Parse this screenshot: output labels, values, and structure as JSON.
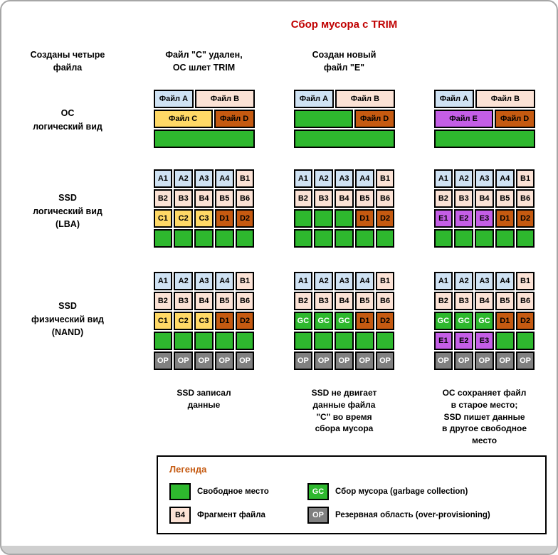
{
  "title": "Сбор мусора с TRIM",
  "colors": {
    "title": "#c00000",
    "free": "#2eb82e",
    "file_a": "#cfe2f3",
    "file_b": "#fbe2d5",
    "file_c": "#ffd966",
    "file_d": "#c55a11",
    "file_e": "#c45ee6",
    "op": "#808080",
    "legend_title": "#c55a11"
  },
  "row_labels": [
    "ОС\nлогический вид",
    "SSD\nлогический вид\n(LBA)",
    "SSD\nфизический вид\n(NAND)"
  ],
  "columns": [
    {
      "header": "Созданы четыре\nфайла",
      "caption": "SSD записал\nданные",
      "os_rows": [
        [
          {
            "label": "Файл A",
            "type": "A",
            "flex": 2
          },
          {
            "label": "Файл B",
            "type": "B",
            "flex": 3
          }
        ],
        [
          {
            "label": "Файл C",
            "type": "C",
            "flex": 3
          },
          {
            "label": "Файл D",
            "type": "D",
            "flex": 2
          }
        ],
        [
          {
            "label": "",
            "type": "free",
            "flex": 1
          }
        ]
      ],
      "lba_grid": [
        [
          {
            "label": "A1",
            "type": "A"
          },
          {
            "label": "A2",
            "type": "A"
          },
          {
            "label": "A3",
            "type": "A"
          },
          {
            "label": "A4",
            "type": "A"
          },
          {
            "label": "B1",
            "type": "B"
          }
        ],
        [
          {
            "label": "B2",
            "type": "B"
          },
          {
            "label": "B3",
            "type": "B"
          },
          {
            "label": "B4",
            "type": "B"
          },
          {
            "label": "B5",
            "type": "B"
          },
          {
            "label": "B6",
            "type": "B"
          }
        ],
        [
          {
            "label": "C1",
            "type": "C"
          },
          {
            "label": "C2",
            "type": "C"
          },
          {
            "label": "C3",
            "type": "C"
          },
          {
            "label": "D1",
            "type": "D"
          },
          {
            "label": "D2",
            "type": "D"
          }
        ],
        [
          {
            "label": "",
            "type": "free"
          },
          {
            "label": "",
            "type": "free"
          },
          {
            "label": "",
            "type": "free"
          },
          {
            "label": "",
            "type": "free"
          },
          {
            "label": "",
            "type": "free"
          }
        ]
      ],
      "nand_grid": [
        [
          {
            "label": "A1",
            "type": "A"
          },
          {
            "label": "A2",
            "type": "A"
          },
          {
            "label": "A3",
            "type": "A"
          },
          {
            "label": "A4",
            "type": "A"
          },
          {
            "label": "B1",
            "type": "B"
          }
        ],
        [
          {
            "label": "B2",
            "type": "B"
          },
          {
            "label": "B3",
            "type": "B"
          },
          {
            "label": "B4",
            "type": "B"
          },
          {
            "label": "B5",
            "type": "B"
          },
          {
            "label": "B6",
            "type": "B"
          }
        ],
        [
          {
            "label": "C1",
            "type": "C"
          },
          {
            "label": "C2",
            "type": "C"
          },
          {
            "label": "C3",
            "type": "C"
          },
          {
            "label": "D1",
            "type": "D"
          },
          {
            "label": "D2",
            "type": "D"
          }
        ],
        [
          {
            "label": "",
            "type": "free"
          },
          {
            "label": "",
            "type": "free"
          },
          {
            "label": "",
            "type": "free"
          },
          {
            "label": "",
            "type": "free"
          },
          {
            "label": "",
            "type": "free"
          }
        ],
        [
          {
            "label": "OP",
            "type": "OP"
          },
          {
            "label": "OP",
            "type": "OP"
          },
          {
            "label": "OP",
            "type": "OP"
          },
          {
            "label": "OP",
            "type": "OP"
          },
          {
            "label": "OP",
            "type": "OP"
          }
        ]
      ]
    },
    {
      "header": "Файл \"C\" удален,\nОС шлет TRIM",
      "caption": "SSD не двигает\nданные файла\n\"C\" во время\nсбора мусора",
      "os_rows": [
        [
          {
            "label": "Файл A",
            "type": "A",
            "flex": 2
          },
          {
            "label": "Файл B",
            "type": "B",
            "flex": 3
          }
        ],
        [
          {
            "label": "",
            "type": "free",
            "flex": 3
          },
          {
            "label": "Файл D",
            "type": "D",
            "flex": 2
          }
        ],
        [
          {
            "label": "",
            "type": "free",
            "flex": 1
          }
        ]
      ],
      "lba_grid": [
        [
          {
            "label": "A1",
            "type": "A"
          },
          {
            "label": "A2",
            "type": "A"
          },
          {
            "label": "A3",
            "type": "A"
          },
          {
            "label": "A4",
            "type": "A"
          },
          {
            "label": "B1",
            "type": "B"
          }
        ],
        [
          {
            "label": "B2",
            "type": "B"
          },
          {
            "label": "B3",
            "type": "B"
          },
          {
            "label": "B4",
            "type": "B"
          },
          {
            "label": "B5",
            "type": "B"
          },
          {
            "label": "B6",
            "type": "B"
          }
        ],
        [
          {
            "label": "",
            "type": "free"
          },
          {
            "label": "",
            "type": "free"
          },
          {
            "label": "",
            "type": "free"
          },
          {
            "label": "D1",
            "type": "D"
          },
          {
            "label": "D2",
            "type": "D"
          }
        ],
        [
          {
            "label": "",
            "type": "free"
          },
          {
            "label": "",
            "type": "free"
          },
          {
            "label": "",
            "type": "free"
          },
          {
            "label": "",
            "type": "free"
          },
          {
            "label": "",
            "type": "free"
          }
        ]
      ],
      "nand_grid": [
        [
          {
            "label": "A1",
            "type": "A"
          },
          {
            "label": "A2",
            "type": "A"
          },
          {
            "label": "A3",
            "type": "A"
          },
          {
            "label": "A4",
            "type": "A"
          },
          {
            "label": "B1",
            "type": "B"
          }
        ],
        [
          {
            "label": "B2",
            "type": "B"
          },
          {
            "label": "B3",
            "type": "B"
          },
          {
            "label": "B4",
            "type": "B"
          },
          {
            "label": "B5",
            "type": "B"
          },
          {
            "label": "B6",
            "type": "B"
          }
        ],
        [
          {
            "label": "GC",
            "type": "GC"
          },
          {
            "label": "GC",
            "type": "GC"
          },
          {
            "label": "GC",
            "type": "GC"
          },
          {
            "label": "D1",
            "type": "D"
          },
          {
            "label": "D2",
            "type": "D"
          }
        ],
        [
          {
            "label": "",
            "type": "free"
          },
          {
            "label": "",
            "type": "free"
          },
          {
            "label": "",
            "type": "free"
          },
          {
            "label": "",
            "type": "free"
          },
          {
            "label": "",
            "type": "free"
          }
        ],
        [
          {
            "label": "OP",
            "type": "OP"
          },
          {
            "label": "OP",
            "type": "OP"
          },
          {
            "label": "OP",
            "type": "OP"
          },
          {
            "label": "OP",
            "type": "OP"
          },
          {
            "label": "OP",
            "type": "OP"
          }
        ]
      ]
    },
    {
      "header": "Создан новый\nфайл \"E\"",
      "caption": "ОС сохраняет файл\nв старое место;\nSSD пишет данные\nв другое свободное\nместо",
      "os_rows": [
        [
          {
            "label": "Файл A",
            "type": "A",
            "flex": 2
          },
          {
            "label": "Файл B",
            "type": "B",
            "flex": 3
          }
        ],
        [
          {
            "label": "Файл E",
            "type": "E",
            "flex": 3
          },
          {
            "label": "Файл D",
            "type": "D",
            "flex": 2
          }
        ],
        [
          {
            "label": "",
            "type": "free",
            "flex": 1
          }
        ]
      ],
      "lba_grid": [
        [
          {
            "label": "A1",
            "type": "A"
          },
          {
            "label": "A2",
            "type": "A"
          },
          {
            "label": "A3",
            "type": "A"
          },
          {
            "label": "A4",
            "type": "A"
          },
          {
            "label": "B1",
            "type": "B"
          }
        ],
        [
          {
            "label": "B2",
            "type": "B"
          },
          {
            "label": "B3",
            "type": "B"
          },
          {
            "label": "B4",
            "type": "B"
          },
          {
            "label": "B5",
            "type": "B"
          },
          {
            "label": "B6",
            "type": "B"
          }
        ],
        [
          {
            "label": "E1",
            "type": "E"
          },
          {
            "label": "E2",
            "type": "E"
          },
          {
            "label": "E3",
            "type": "E"
          },
          {
            "label": "D1",
            "type": "D"
          },
          {
            "label": "D2",
            "type": "D"
          }
        ],
        [
          {
            "label": "",
            "type": "free"
          },
          {
            "label": "",
            "type": "free"
          },
          {
            "label": "",
            "type": "free"
          },
          {
            "label": "",
            "type": "free"
          },
          {
            "label": "",
            "type": "free"
          }
        ]
      ],
      "nand_grid": [
        [
          {
            "label": "A1",
            "type": "A"
          },
          {
            "label": "A2",
            "type": "A"
          },
          {
            "label": "A3",
            "type": "A"
          },
          {
            "label": "A4",
            "type": "A"
          },
          {
            "label": "B1",
            "type": "B"
          }
        ],
        [
          {
            "label": "B2",
            "type": "B"
          },
          {
            "label": "B3",
            "type": "B"
          },
          {
            "label": "B4",
            "type": "B"
          },
          {
            "label": "B5",
            "type": "B"
          },
          {
            "label": "B6",
            "type": "B"
          }
        ],
        [
          {
            "label": "GC",
            "type": "GC"
          },
          {
            "label": "GC",
            "type": "GC"
          },
          {
            "label": "GC",
            "type": "GC"
          },
          {
            "label": "D1",
            "type": "D"
          },
          {
            "label": "D2",
            "type": "D"
          }
        ],
        [
          {
            "label": "E1",
            "type": "E"
          },
          {
            "label": "E2",
            "type": "E"
          },
          {
            "label": "E3",
            "type": "E"
          },
          {
            "label": "",
            "type": "free"
          },
          {
            "label": "",
            "type": "free"
          }
        ],
        [
          {
            "label": "OP",
            "type": "OP"
          },
          {
            "label": "OP",
            "type": "OP"
          },
          {
            "label": "OP",
            "type": "OP"
          },
          {
            "label": "OP",
            "type": "OP"
          },
          {
            "label": "OP",
            "type": "OP"
          }
        ]
      ]
    }
  ],
  "legend": {
    "title": "Легенда",
    "items": [
      {
        "swatch_label": "",
        "swatch_type": "free",
        "label": "Свободное место"
      },
      {
        "swatch_label": "B4",
        "swatch_type": "B",
        "label": "Фрагмент файла"
      },
      {
        "swatch_label": "GC",
        "swatch_type": "GC",
        "label": "Сбор мусора (garbage collection)"
      },
      {
        "swatch_label": "OP",
        "swatch_type": "OP",
        "label": "Резервная область (over-provisioning)"
      }
    ]
  }
}
